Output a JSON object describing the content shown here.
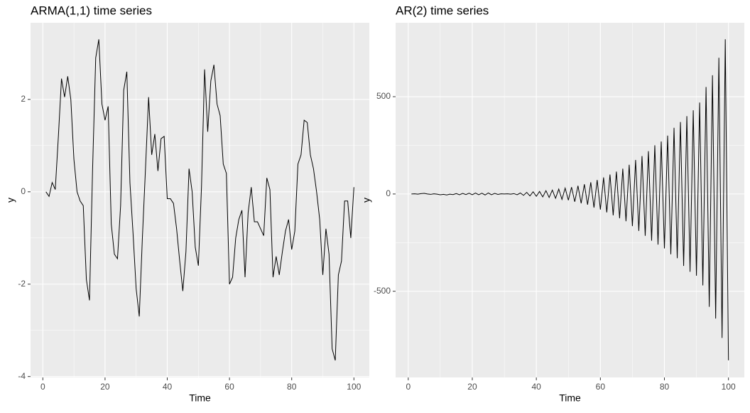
{
  "chart_data": [
    {
      "type": "line",
      "title": "ARMA(1,1) time series",
      "x_label": "Time",
      "y_label": "y",
      "x": [
        1,
        2,
        3,
        4,
        5,
        6,
        7,
        8,
        9,
        10,
        11,
        12,
        13,
        14,
        15,
        16,
        17,
        18,
        19,
        20,
        21,
        22,
        23,
        24,
        25,
        26,
        27,
        28,
        29,
        30,
        31,
        32,
        33,
        34,
        35,
        36,
        37,
        38,
        39,
        40,
        41,
        42,
        43,
        44,
        45,
        46,
        47,
        48,
        49,
        50,
        51,
        52,
        53,
        54,
        55,
        56,
        57,
        58,
        59,
        60,
        61,
        62,
        63,
        64,
        65,
        66,
        67,
        68,
        69,
        70,
        71,
        72,
        73,
        74,
        75,
        76,
        77,
        78,
        79,
        80,
        81,
        82,
        83,
        84,
        85,
        86,
        87,
        88,
        89,
        90,
        91,
        92,
        93,
        94,
        95,
        96,
        97,
        98,
        99,
        100
      ],
      "series": [
        {
          "color": "#000000",
          "values": [
            0,
            -0.1,
            0.2,
            0.05,
            1.2,
            2.45,
            2.05,
            2.5,
            2.0,
            0.7,
            0.0,
            -0.2,
            -0.3,
            -1.9,
            -2.35,
            0.5,
            2.9,
            3.3,
            1.9,
            1.55,
            1.85,
            -0.7,
            -1.35,
            -1.45,
            -0.3,
            2.2,
            2.6,
            0.2,
            -0.9,
            -2.1,
            -2.7,
            -1.0,
            0.5,
            2.05,
            0.8,
            1.25,
            0.45,
            1.15,
            1.2,
            -0.15,
            -0.15,
            -0.25,
            -0.8,
            -1.5,
            -2.15,
            -1.3,
            0.5,
            0.0,
            -1.2,
            -1.6,
            0.1,
            2.65,
            1.3,
            2.4,
            2.75,
            1.9,
            1.65,
            0.6,
            0.4,
            -2.0,
            -1.85,
            -1.0,
            -0.6,
            -0.4,
            -1.85,
            -0.45,
            0.1,
            -0.65,
            -0.65,
            -0.8,
            -0.95,
            0.3,
            0.05,
            -1.85,
            -1.4,
            -1.8,
            -1.3,
            -0.85,
            -0.6,
            -1.25,
            -0.85,
            0.6,
            0.8,
            1.55,
            1.5,
            0.8,
            0.5,
            0.0,
            -0.6,
            -1.8,
            -0.8,
            -1.35,
            -3.4,
            -3.65,
            -1.8,
            -1.5,
            -0.2,
            -0.2,
            -1.0,
            0.1
          ]
        }
      ],
      "xlim": [
        -3.95,
        104.95
      ],
      "xticks": [
        0,
        20,
        40,
        60,
        80,
        100
      ],
      "ylim": [
        -4.02,
        3.66
      ],
      "yticks": [
        -4,
        -2,
        0,
        2
      ],
      "grid": true
    },
    {
      "type": "line",
      "title": "AR(2) time series",
      "x_label": "Time",
      "y_label": "y",
      "x": [
        1,
        2,
        3,
        4,
        5,
        6,
        7,
        8,
        9,
        10,
        11,
        12,
        13,
        14,
        15,
        16,
        17,
        18,
        19,
        20,
        21,
        22,
        23,
        24,
        25,
        26,
        27,
        28,
        29,
        30,
        31,
        32,
        33,
        34,
        35,
        36,
        37,
        38,
        39,
        40,
        41,
        42,
        43,
        44,
        45,
        46,
        47,
        48,
        49,
        50,
        51,
        52,
        53,
        54,
        55,
        56,
        57,
        58,
        59,
        60,
        61,
        62,
        63,
        64,
        65,
        66,
        67,
        68,
        69,
        70,
        71,
        72,
        73,
        74,
        75,
        76,
        77,
        78,
        79,
        80,
        81,
        82,
        83,
        84,
        85,
        86,
        87,
        88,
        89,
        90,
        91,
        92,
        93,
        94,
        95,
        96,
        97,
        98,
        99,
        100
      ],
      "series": [
        {
          "color": "#000000",
          "values": [
            0,
            1,
            -1,
            2,
            3,
            0,
            -2,
            1,
            -1,
            -4,
            -2,
            -5,
            -1,
            -3,
            2,
            -4,
            3,
            -3,
            4,
            -4,
            5,
            -4,
            4,
            -5,
            5,
            -4,
            3,
            -2,
            1,
            0,
            1,
            -1,
            2,
            -4,
            5,
            -7,
            8,
            -10,
            11,
            -12,
            13,
            -15,
            17,
            -18,
            20,
            -22,
            25,
            -28,
            30,
            -32,
            35,
            -40,
            42,
            -48,
            50,
            -55,
            60,
            -70,
            72,
            -80,
            85,
            -95,
            100,
            -110,
            115,
            -125,
            130,
            -140,
            150,
            -165,
            175,
            -190,
            195,
            -215,
            220,
            -240,
            250,
            -260,
            270,
            -280,
            300,
            -310,
            340,
            -330,
            370,
            -370,
            400,
            -400,
            430,
            -420,
            470,
            -470,
            550,
            -580,
            610,
            -640,
            700,
            -740,
            795,
            -855
          ]
        }
      ],
      "xlim": [
        -3.95,
        104.95
      ],
      "xticks": [
        0,
        20,
        40,
        60,
        80,
        100
      ],
      "ylim": [
        -943,
        880
      ],
      "yticks": [
        -500,
        0,
        500
      ],
      "grid": true
    }
  ]
}
